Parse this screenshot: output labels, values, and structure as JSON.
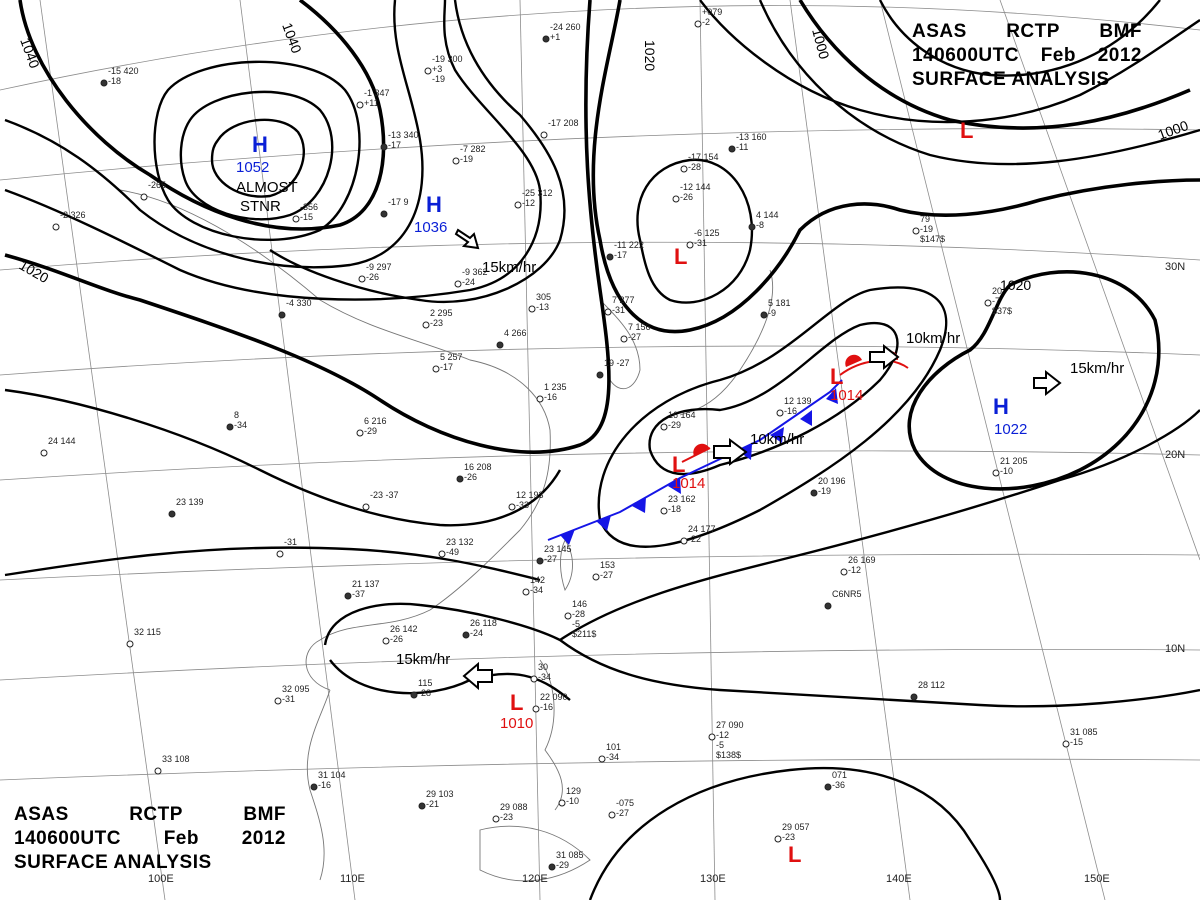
{
  "titles": {
    "top": {
      "line1": [
        "ASAS",
        "RCTP",
        "BMF"
      ],
      "line2": [
        "140600UTC",
        "Feb",
        "2012"
      ],
      "line3": "SURFACE ANALYSIS"
    },
    "bottom": {
      "line1": [
        "ASAS",
        "RCTP",
        "BMF"
      ],
      "line2": [
        "140600UTC",
        "Feb",
        "2012"
      ],
      "line3": "SURFACE ANALYSIS"
    }
  },
  "grid_labels": {
    "longitudes": [
      "100E",
      "110E",
      "120E",
      "130E",
      "140E",
      "150E"
    ],
    "latitudes": [
      "30N",
      "20N",
      "10N"
    ]
  },
  "isobar_labels": [
    "1040",
    "1040",
    "1020",
    "1020",
    "1000",
    "1000",
    "1020"
  ],
  "pressure_centers": [
    {
      "type": "H",
      "value": "1052"
    },
    {
      "type": "H",
      "value": "1036"
    },
    {
      "type": "H",
      "value": "1022"
    },
    {
      "type": "L",
      "value": ""
    },
    {
      "type": "L",
      "value": ""
    },
    {
      "type": "L",
      "value": "1014"
    },
    {
      "type": "L",
      "value": "1014"
    },
    {
      "type": "L",
      "value": "1010"
    },
    {
      "type": "L",
      "value": ""
    }
  ],
  "annotations": {
    "almost": "ALMOST",
    "stnr": "STNR"
  },
  "movements": [
    {
      "speed": "15km/hr"
    },
    {
      "speed": "10km/hr"
    },
    {
      "speed": "10km/hr"
    },
    {
      "speed": "15km/hr"
    },
    {
      "speed": "15km/hr"
    }
  ],
  "stations": [
    {
      "lines": [
        "-15 420",
        "-18"
      ]
    },
    {
      "lines": [
        "-1 347",
        "+11"
      ]
    },
    {
      "lines": [
        "-19 300",
        "+3",
        "-19"
      ]
    },
    {
      "lines": [
        "-13 340",
        "-17"
      ]
    },
    {
      "lines": [
        "-7 282",
        "-19"
      ]
    },
    {
      "lines": [
        "-17 208"
      ]
    },
    {
      "lines": [
        "-24 260",
        "+1"
      ]
    },
    {
      "lines": [
        "+079",
        "-2"
      ]
    },
    {
      "lines": [
        "-17 154",
        "-28"
      ]
    },
    {
      "lines": [
        "-13 160",
        "-11"
      ]
    },
    {
      "lines": [
        "-12 144",
        "-26"
      ]
    },
    {
      "lines": [
        "-6 125",
        "-31"
      ]
    },
    {
      "lines": [
        "4 144",
        "-8"
      ]
    },
    {
      "lines": [
        "-265"
      ]
    },
    {
      "lines": [
        "-2 326"
      ]
    },
    {
      "lines": [
        "-17 9"
      ]
    },
    {
      "lines": [
        "-356",
        "-15"
      ]
    },
    {
      "lines": [
        "-25 312",
        "-12"
      ]
    },
    {
      "lines": [
        "-11 222",
        "-17"
      ]
    },
    {
      "lines": [
        "-9 297",
        "-26"
      ]
    },
    {
      "lines": [
        "-9 362",
        "-24"
      ]
    },
    {
      "lines": [
        "-4 330"
      ]
    },
    {
      "lines": [
        "2 295",
        "-23"
      ]
    },
    {
      "lines": [
        "305",
        "-13"
      ]
    },
    {
      "lines": [
        "4 266"
      ]
    },
    {
      "lines": [
        "7 277",
        "-31"
      ]
    },
    {
      "lines": [
        "7 156",
        "-27"
      ]
    },
    {
      "lines": [
        "19 -27"
      ]
    },
    {
      "lines": [
        "5 257",
        "-17"
      ]
    },
    {
      "lines": [
        "1 235",
        "-16"
      ]
    },
    {
      "lines": [
        "5 181",
        "-9"
      ]
    },
    {
      "lines": [
        "12 139",
        "-16"
      ]
    },
    {
      "lines": [
        "16 164",
        "-29"
      ]
    },
    {
      "lines": [
        "8",
        "-34"
      ]
    },
    {
      "lines": [
        "24 144"
      ]
    },
    {
      "lines": [
        "6 216",
        "-29"
      ]
    },
    {
      "lines": [
        "16 208",
        "-26"
      ]
    },
    {
      "lines": [
        "12 193",
        "-33"
      ]
    },
    {
      "lines": [
        "-23 -37"
      ]
    },
    {
      "lines": [
        "23 139"
      ]
    },
    {
      "lines": [
        "23 162",
        "-18"
      ]
    },
    {
      "lines": [
        "24 177",
        "-22"
      ]
    },
    {
      "lines": [
        "20 196",
        "-19"
      ]
    },
    {
      "lines": [
        "21 205",
        "-10"
      ]
    },
    {
      "lines": [
        "23 132",
        "-49"
      ]
    },
    {
      "lines": [
        "23 145",
        "-27"
      ]
    },
    {
      "lines": [
        "153",
        "-27"
      ]
    },
    {
      "lines": [
        "-31"
      ]
    },
    {
      "lines": [
        "21 137",
        "-37"
      ]
    },
    {
      "lines": [
        "142",
        "-34"
      ]
    },
    {
      "lines": [
        "26 169",
        "-12"
      ]
    },
    {
      "lines": [
        "C6NR5"
      ]
    },
    {
      "lines": [
        "32 115"
      ]
    },
    {
      "lines": [
        "26 142",
        "-26"
      ]
    },
    {
      "lines": [
        "26 118",
        "-24"
      ]
    },
    {
      "lines": [
        "146",
        "-28",
        "-5",
        "$211$"
      ]
    },
    {
      "lines": [
        "32 095",
        "-31"
      ]
    },
    {
      "lines": [
        "115",
        "-28"
      ]
    },
    {
      "lines": [
        "30",
        "-34"
      ]
    },
    {
      "lines": [
        "22 090",
        "-16"
      ]
    },
    {
      "lines": [
        "28 112"
      ]
    },
    {
      "lines": [
        "27 090",
        "-12",
        "-5",
        "$138$"
      ]
    },
    {
      "lines": [
        "33 108"
      ]
    },
    {
      "lines": [
        "31 104",
        "-16"
      ]
    },
    {
      "lines": [
        "101",
        "-34"
      ]
    },
    {
      "lines": [
        "129",
        "-10"
      ]
    },
    {
      "lines": [
        "29 103",
        "-21"
      ]
    },
    {
      "lines": [
        "29 088",
        "-23"
      ]
    },
    {
      "lines": [
        "-075",
        "-27"
      ]
    },
    {
      "lines": [
        "071",
        "-36"
      ]
    },
    {
      "lines": [
        "31 085",
        "-15"
      ]
    },
    {
      "lines": [
        "29 057",
        "-23"
      ]
    },
    {
      "lines": [
        "31 085",
        "-29"
      ]
    },
    {
      "lines": [
        "79",
        "-19",
        "$147$"
      ]
    },
    {
      "lines": [
        "20",
        "-7",
        "$37$"
      ]
    }
  ]
}
